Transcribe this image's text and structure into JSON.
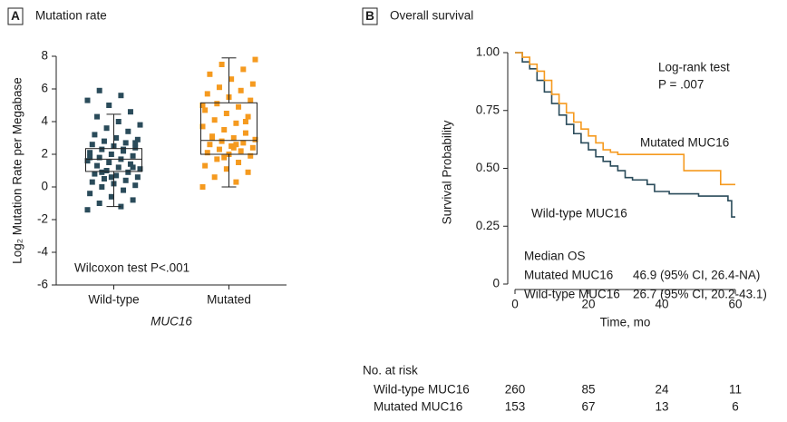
{
  "chart_data": [
    {
      "type": "box",
      "panel": "A",
      "title": "Mutation rate",
      "y_label": "Log₂ Mutation Rate per Megabase",
      "x_label": "MUC16",
      "annotation": "Wilcoxon test  P<.001",
      "categories": [
        "Wild-type",
        "Mutated"
      ],
      "ylim": [
        -6,
        8
      ],
      "yticks": [
        -6,
        -4,
        -2,
        0,
        2,
        4,
        6,
        8
      ],
      "series": [
        {
          "name": "Wild-type",
          "color": "#2a4b5a",
          "box": {
            "whisker_low": -1.2,
            "q1": 0.95,
            "median": 1.7,
            "q3": 2.35,
            "whisker_high": 4.45
          },
          "values": [
            -1.4,
            -1.2,
            -1.0,
            -0.8,
            -0.6,
            -0.4,
            -0.2,
            0.0,
            0.1,
            0.2,
            0.3,
            0.4,
            0.5,
            0.6,
            0.7,
            0.8,
            0.9,
            1.0,
            1.1,
            1.2,
            1.3,
            1.4,
            1.5,
            1.6,
            1.7,
            1.8,
            1.9,
            2.0,
            2.1,
            2.2,
            2.3,
            2.4,
            2.5,
            2.6,
            2.7,
            2.8,
            2.9,
            3.0,
            3.2,
            3.4,
            3.6,
            3.8,
            4.0,
            4.3,
            4.6,
            5.0,
            5.3,
            5.6,
            5.9,
            1.2,
            0.6,
            1.8,
            2.3,
            0.9,
            2.7
          ]
        },
        {
          "name": "Mutated",
          "color": "#f59a1f",
          "box": {
            "whisker_low": 0.0,
            "q1": 2.0,
            "median": 2.85,
            "q3": 5.15,
            "whisker_high": 7.9
          },
          "values": [
            0.0,
            0.3,
            0.6,
            0.9,
            1.1,
            1.3,
            1.5,
            1.7,
            1.9,
            2.0,
            2.1,
            2.2,
            2.3,
            2.4,
            2.5,
            2.6,
            2.7,
            2.8,
            2.9,
            3.0,
            3.1,
            3.3,
            3.5,
            3.7,
            3.9,
            4.1,
            4.3,
            4.5,
            4.7,
            4.9,
            5.1,
            5.3,
            5.5,
            5.7,
            5.9,
            6.1,
            6.3,
            6.6,
            6.9,
            7.2,
            7.5,
            7.8,
            2.4,
            3.0,
            4.0,
            1.8,
            5.0,
            2.6
          ]
        }
      ]
    },
    {
      "type": "step",
      "panel": "B",
      "title": "Overall survival",
      "x_label": "Time, mo",
      "y_label": "Survival Probability",
      "annotations": [
        "Log-rank test",
        "P = .007"
      ],
      "median_title": "Median OS",
      "risk_title": "No. at risk",
      "xlim": [
        0,
        60
      ],
      "xticks": [
        0,
        20,
        40,
        60
      ],
      "ylim": [
        0,
        1
      ],
      "yticks": [
        0,
        {
          "value": 0.25,
          "label": "0.25"
        },
        {
          "value": 0.5,
          "label": "0.50"
        },
        {
          "value": 0.75,
          "label": "0.75"
        },
        {
          "value": 1,
          "label": "1.00"
        }
      ],
      "series": [
        {
          "name": "Wild-type MUC16",
          "color": "#2a4b5a",
          "x": [
            0,
            2,
            4,
            6,
            8,
            10,
            12,
            14,
            16,
            18,
            20,
            22,
            24,
            26,
            28,
            30,
            32,
            36,
            38,
            42,
            50,
            58,
            59,
            60
          ],
          "values": [
            1.0,
            0.96,
            0.93,
            0.88,
            0.83,
            0.78,
            0.73,
            0.69,
            0.65,
            0.61,
            0.58,
            0.55,
            0.53,
            0.51,
            0.49,
            0.46,
            0.45,
            0.43,
            0.4,
            0.39,
            0.38,
            0.36,
            0.29,
            0.29
          ],
          "median_os": "26.7 (95% CI, 20.2-43.1)",
          "at_risk": [
            260,
            85,
            24,
            11
          ]
        },
        {
          "name": "Mutated MUC16",
          "color": "#f59a1f",
          "x": [
            0,
            2,
            4,
            6,
            8,
            10,
            12,
            14,
            16,
            18,
            20,
            22,
            24,
            26,
            28,
            46,
            56,
            60
          ],
          "values": [
            1.0,
            0.98,
            0.95,
            0.92,
            0.88,
            0.82,
            0.78,
            0.74,
            0.7,
            0.67,
            0.64,
            0.61,
            0.58,
            0.57,
            0.56,
            0.49,
            0.43,
            0.43
          ],
          "median_os": "46.9 (95% CI, 26.4-NA)",
          "at_risk": [
            153,
            67,
            13,
            6
          ]
        }
      ]
    }
  ]
}
